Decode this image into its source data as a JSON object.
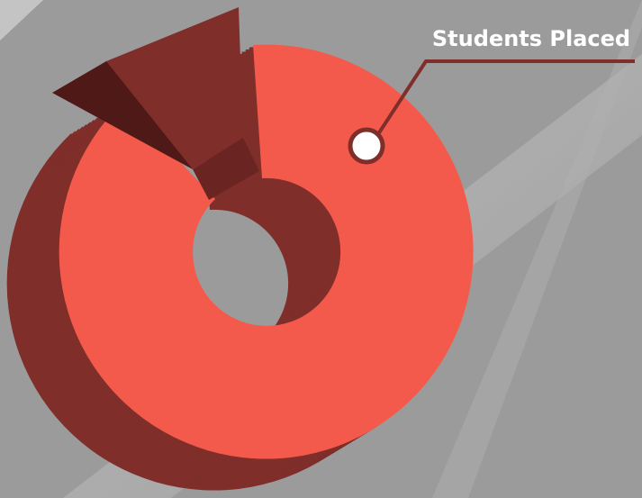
{
  "label": "Students Placed"
}
